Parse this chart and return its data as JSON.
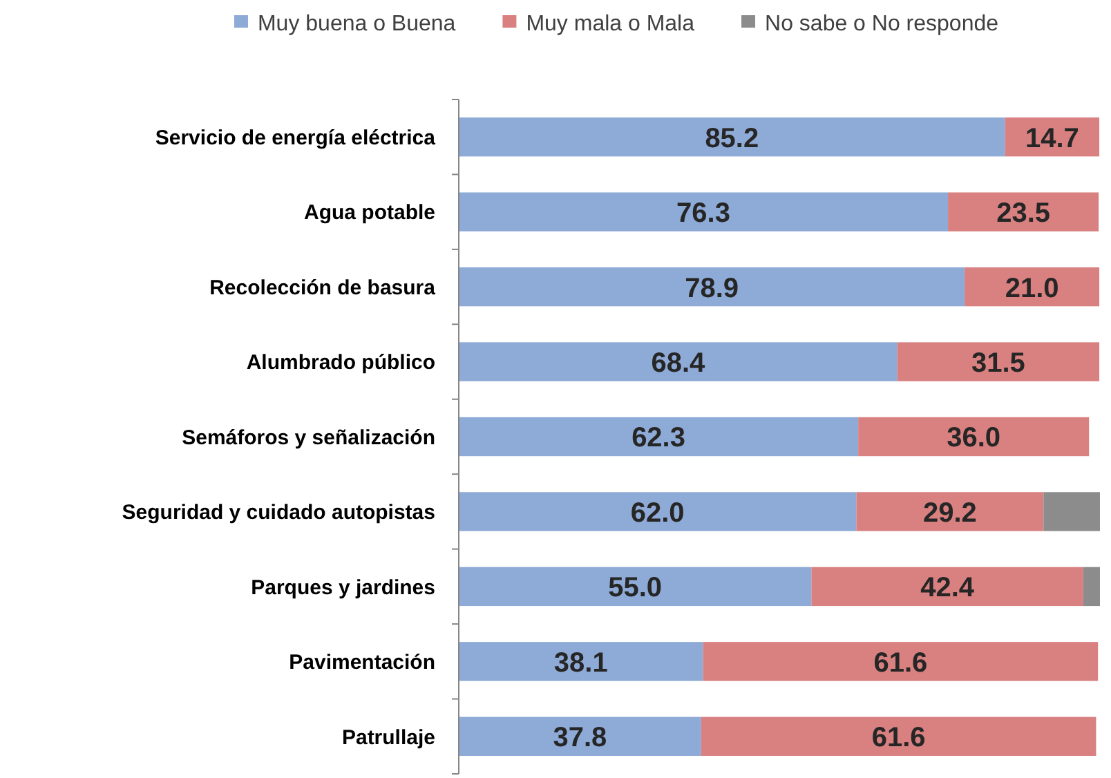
{
  "chart_data": {
    "type": "bar",
    "orientation": "horizontal",
    "stacked": true,
    "legend": "top",
    "tick_labels": "y",
    "xlim": [
      0,
      100
    ],
    "categories": [
      "Servicio de energía eléctrica",
      "Agua potable",
      "Recolección de basura",
      "Alumbrado público",
      "Semáforos y señalización",
      "Seguridad y cuidado autopistas",
      "Parques y jardines",
      "Pavimentación",
      "Patrullaje"
    ],
    "series": [
      {
        "name": "Muy buena o Buena",
        "color": "#8eaad6",
        "values": [
          85.2,
          76.3,
          78.9,
          68.4,
          62.3,
          62.0,
          55.0,
          38.1,
          37.8
        ],
        "value_labels": [
          "85.2",
          "76.3",
          "78.9",
          "68.4",
          "62.3",
          "62.0",
          "55.0",
          "38.1",
          "37.8"
        ]
      },
      {
        "name": "Muy mala o Mala",
        "color": "#d98080",
        "values": [
          14.7,
          23.5,
          21.0,
          31.5,
          36.0,
          29.2,
          42.4,
          61.6,
          61.6
        ],
        "value_labels": [
          "14.7",
          "23.5",
          "21.0",
          "31.5",
          "36.0",
          "29.2",
          "42.4",
          "61.6",
          "61.6"
        ]
      },
      {
        "name": "No sabe o No responde",
        "color": "#8c8c8c",
        "values": [
          null,
          null,
          null,
          null,
          null,
          8.8,
          2.6,
          null,
          null
        ]
      }
    ]
  }
}
